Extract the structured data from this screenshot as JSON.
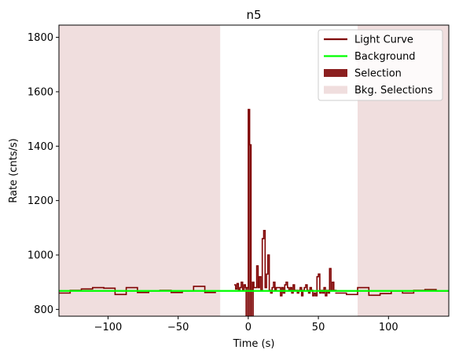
{
  "chart_data": {
    "type": "line",
    "title": "n5",
    "xlabel": "Time (s)",
    "ylabel": "Rate (cnts/s)",
    "xlim": [
      -135,
      143
    ],
    "ylim": [
      775,
      1845
    ],
    "xticks": [
      -100,
      -50,
      0,
      50,
      100
    ],
    "yticks": [
      800,
      1000,
      1200,
      1400,
      1600,
      1800
    ],
    "grid": false,
    "legend_position": "top-right",
    "colors": {
      "light_curve": "#7f0000",
      "background": "#00ff00",
      "selection": "#8b2020",
      "bkg_selection": "#f0dede"
    },
    "legend": [
      {
        "label": "Light Curve",
        "kind": "line",
        "color": "#7f0000"
      },
      {
        "label": "Background",
        "kind": "line",
        "color": "#00ff00"
      },
      {
        "label": "Selection",
        "kind": "patch",
        "color": "#8b2020"
      },
      {
        "label": "Bkg. Selections",
        "kind": "patch",
        "color": "#f0dede"
      }
    ],
    "background_level": 868,
    "selection_range": [
      -2,
      4
    ],
    "bkg_selection_ranges": [
      [
        -135,
        -20
      ],
      [
        78,
        143
      ]
    ],
    "light_curve_coarse": {
      "edges": [
        -135,
        -127,
        -119,
        -111,
        -103,
        -95,
        -87,
        -79,
        -71,
        -63,
        -55,
        -47,
        -39,
        -31,
        -23
      ],
      "values": [
        860,
        870,
        875,
        880,
        878,
        855,
        880,
        862,
        868,
        870,
        862,
        868,
        885,
        862
      ]
    },
    "light_curve_fine": {
      "x": [
        -10,
        -9,
        -8,
        -7,
        -6,
        -5,
        -4,
        -3,
        -2,
        -1,
        0,
        1,
        2,
        3,
        4,
        5,
        6,
        7,
        8,
        9,
        10,
        11,
        12,
        13,
        14,
        15,
        16,
        17,
        18,
        19,
        20,
        21,
        22,
        23,
        24,
        25,
        26,
        27,
        28,
        29,
        30,
        31,
        32,
        33,
        34,
        35,
        36,
        37,
        38,
        39,
        40,
        41,
        42,
        43,
        44,
        45,
        46,
        47,
        48,
        49,
        50,
        51,
        52,
        53,
        54,
        55,
        56,
        57,
        58,
        59,
        60,
        61,
        62
      ],
      "y": [
        890,
        875,
        895,
        870,
        880,
        900,
        870,
        890,
        880,
        880,
        1535,
        1405,
        870,
        900,
        880,
        880,
        960,
        880,
        920,
        870,
        1060,
        1090,
        880,
        930,
        1000,
        870,
        860,
        880,
        900,
        870,
        880,
        880,
        880,
        850,
        880,
        860,
        890,
        900,
        880,
        870,
        880,
        860,
        890,
        870,
        870,
        860,
        870,
        880,
        850,
        870,
        880,
        890,
        870,
        860,
        880,
        870,
        850,
        860,
        850,
        920,
        930,
        860,
        870,
        860,
        880,
        850,
        870,
        860,
        950,
        870,
        900,
        870,
        870
      ]
    },
    "light_curve_tail": {
      "edges": [
        62,
        70,
        78,
        86,
        94,
        102,
        110,
        118,
        126,
        134,
        143
      ],
      "values": [
        860,
        855,
        880,
        852,
        858,
        868,
        860,
        870,
        873,
        868
      ]
    }
  }
}
